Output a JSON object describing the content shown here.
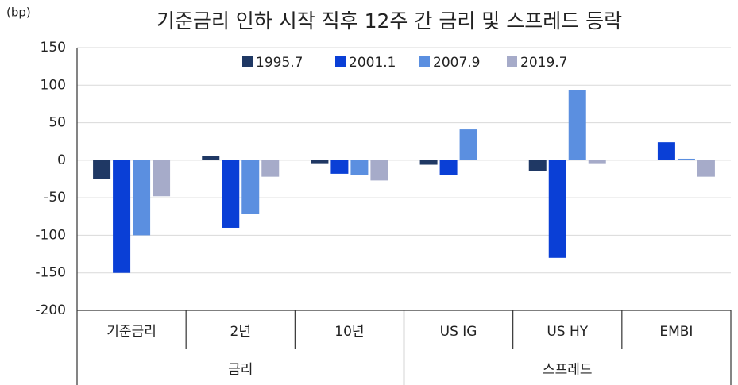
{
  "chart_data": {
    "type": "bar",
    "title": "기준금리 인하 시작 직후 12주 간 금리 및 스프레드 등락",
    "y_label": "(bp)",
    "category_groups": [
      {
        "name": "금리",
        "categories": [
          "기준금리",
          "2년",
          "10년"
        ]
      },
      {
        "name": "스프레드",
        "categories": [
          "US IG",
          "US HY",
          "EMBI"
        ]
      }
    ],
    "series": [
      {
        "name": "1995.7",
        "color": "#1f3864",
        "values": [
          -25,
          6,
          -4,
          -6,
          -14,
          0
        ]
      },
      {
        "name": "2001.1",
        "color": "#0a3fd6",
        "values": [
          -150,
          -90,
          -18,
          -20,
          -130,
          24
        ]
      },
      {
        "name": "2007.9",
        "color": "#5b8fe0",
        "values": [
          -100,
          -71,
          -20,
          41,
          93,
          2
        ]
      },
      {
        "name": "2019.7",
        "color": "#a6abc9",
        "values": [
          -48,
          -22,
          -27,
          0,
          -4,
          -22
        ]
      }
    ],
    "ylim": [
      -200,
      150
    ],
    "yticks": [
      -200,
      -150,
      -100,
      -50,
      0,
      50,
      100,
      150
    ],
    "grid": true,
    "legend": "top"
  }
}
